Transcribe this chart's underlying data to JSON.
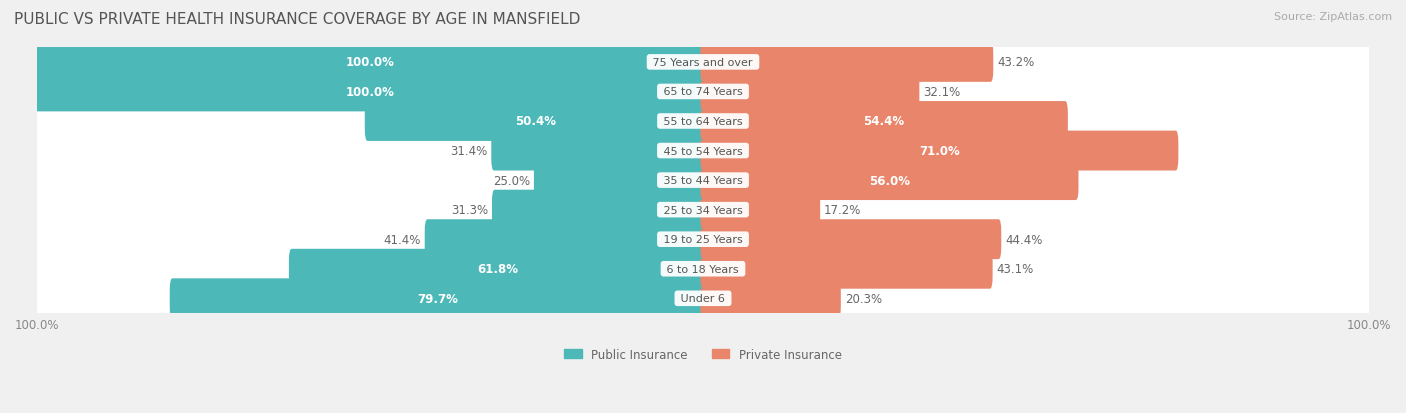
{
  "title": "PUBLIC VS PRIVATE HEALTH INSURANCE COVERAGE BY AGE IN MANSFIELD",
  "source": "Source: ZipAtlas.com",
  "categories": [
    "Under 6",
    "6 to 18 Years",
    "19 to 25 Years",
    "25 to 34 Years",
    "35 to 44 Years",
    "45 to 54 Years",
    "55 to 64 Years",
    "65 to 74 Years",
    "75 Years and over"
  ],
  "public_values": [
    79.7,
    61.8,
    41.4,
    31.3,
    25.0,
    31.4,
    50.4,
    100.0,
    100.0
  ],
  "private_values": [
    20.3,
    43.1,
    44.4,
    17.2,
    56.0,
    71.0,
    54.4,
    32.1,
    43.2
  ],
  "public_color": "#4db8b8",
  "private_color": "#e8856a",
  "bg_color": "#f0f0f0",
  "bar_height": 0.55,
  "title_fontsize": 11,
  "label_fontsize": 8.5,
  "source_fontsize": 8,
  "cat_label_fontsize": 8,
  "cat_label_color": "#555555",
  "value_label_color_inside": "white",
  "value_label_color_outside": "#666666",
  "axis_max": 100.0,
  "legend_label_public": "Public Insurance",
  "legend_label_private": "Private Insurance",
  "x_tick_labels": [
    "100.0%",
    "100.0%"
  ]
}
